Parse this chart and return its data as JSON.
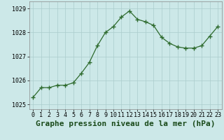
{
  "x": [
    0,
    1,
    2,
    3,
    4,
    5,
    6,
    7,
    8,
    9,
    10,
    11,
    12,
    13,
    14,
    15,
    16,
    17,
    18,
    19,
    20,
    21,
    22,
    23
  ],
  "y": [
    1025.3,
    1025.7,
    1025.7,
    1025.8,
    1025.8,
    1025.9,
    1026.3,
    1026.75,
    1027.45,
    1028.0,
    1028.25,
    1028.65,
    1028.9,
    1028.55,
    1028.45,
    1028.3,
    1027.8,
    1027.55,
    1027.4,
    1027.35,
    1027.35,
    1027.45,
    1027.85,
    1028.25
  ],
  "line_color": "#2d6a2d",
  "marker_color": "#2d6a2d",
  "bg_color": "#cce8e8",
  "grid_color": "#aacccc",
  "xlabel": "Graphe pression niveau de la mer (hPa)",
  "xlabel_color": "#1a4a1a",
  "ylim": [
    1024.8,
    1029.3
  ],
  "yticks": [
    1025,
    1026,
    1027,
    1028,
    1029
  ],
  "xticks": [
    0,
    1,
    2,
    3,
    4,
    5,
    6,
    7,
    8,
    9,
    10,
    11,
    12,
    13,
    14,
    15,
    16,
    17,
    18,
    19,
    20,
    21,
    22,
    23
  ],
  "tick_label_fontsize": 6,
  "xlabel_fontsize": 8
}
